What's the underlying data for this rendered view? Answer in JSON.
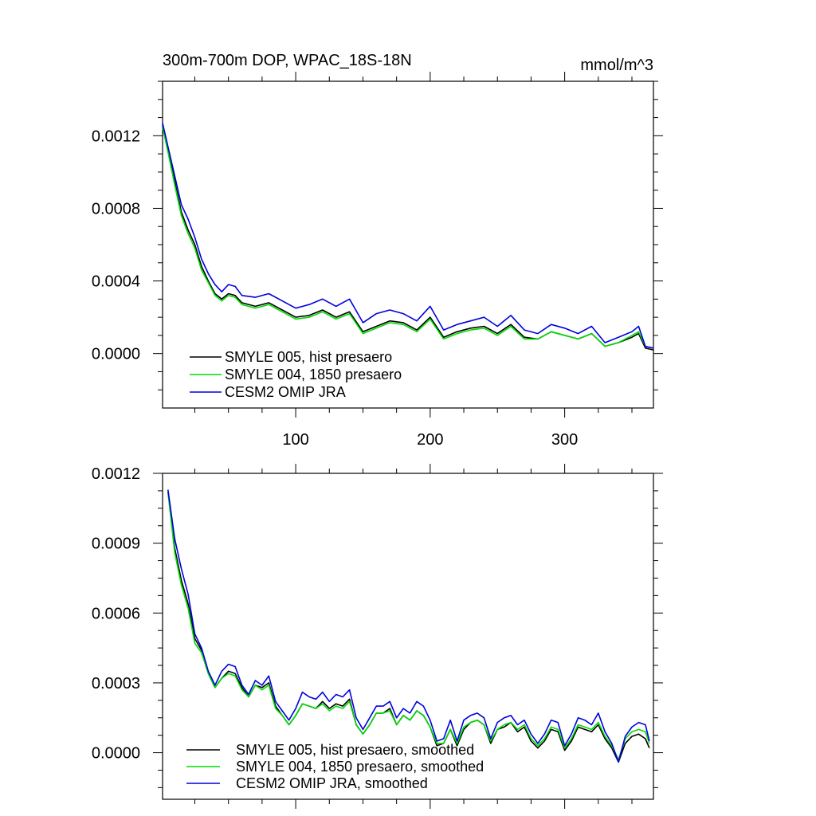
{
  "chart_data": [
    {
      "type": "line",
      "title": "300m-700m DOP, WPAC_18S-18N",
      "units": "mmol/m^3",
      "xlim": [
        1,
        366
      ],
      "ylim": [
        -0.0003,
        0.0015
      ],
      "y_ticks": [
        "0.0000",
        "0.0004",
        "0.0008",
        "0.0012"
      ],
      "y_tick_values": [
        0.0,
        0.0004,
        0.0008,
        0.0012
      ],
      "x_ticks": [
        "100",
        "200",
        "300"
      ],
      "x_tick_values": [
        100,
        200,
        300
      ],
      "legend_position": "bottom-left",
      "series": [
        {
          "name": "SMYLE 005, hist presaero",
          "color": "#000000",
          "x": [
            1,
            5,
            10,
            15,
            20,
            25,
            30,
            35,
            40,
            45,
            50,
            55,
            60,
            70,
            80,
            90,
            100,
            110,
            120,
            130,
            140,
            150,
            160,
            170,
            180,
            190,
            200,
            210,
            220,
            230,
            240,
            250,
            260,
            270,
            280,
            290,
            300,
            310,
            320,
            330,
            340,
            350,
            355,
            360,
            366
          ],
          "values": [
            0.00125,
            0.00112,
            0.00095,
            0.00078,
            0.00068,
            0.0006,
            0.00048,
            0.0004,
            0.00033,
            0.0003,
            0.00033,
            0.00032,
            0.00028,
            0.00026,
            0.00028,
            0.00024,
            0.0002,
            0.00021,
            0.00024,
            0.0002,
            0.00023,
            0.00012,
            0.00015,
            0.00018,
            0.00017,
            0.00013,
            0.0002,
            9e-05,
            0.00012,
            0.00014,
            0.00015,
            0.00011,
            0.00016,
            9e-05,
            8e-05,
            0.00012,
            0.0001,
            8e-05,
            0.00011,
            4e-05,
            6e-05,
            9e-05,
            0.00011,
            3e-05,
            2e-05
          ]
        },
        {
          "name": "SMYLE 004, 1850 presaero",
          "color": "#00dd00",
          "x": [
            1,
            5,
            10,
            15,
            20,
            25,
            30,
            35,
            40,
            45,
            50,
            55,
            60,
            70,
            80,
            90,
            100,
            110,
            120,
            130,
            140,
            150,
            160,
            170,
            180,
            190,
            200,
            210,
            220,
            230,
            240,
            250,
            260,
            270,
            280,
            290,
            300,
            310,
            320,
            330,
            340,
            350,
            355,
            360,
            366
          ],
          "values": [
            0.00125,
            0.00111,
            0.00093,
            0.00076,
            0.00066,
            0.00058,
            0.00046,
            0.00039,
            0.00032,
            0.00029,
            0.00032,
            0.00031,
            0.00027,
            0.00025,
            0.00027,
            0.00023,
            0.00019,
            0.0002,
            0.00023,
            0.00019,
            0.00022,
            0.00011,
            0.00014,
            0.00017,
            0.00016,
            0.00012,
            0.00019,
            8e-05,
            0.00011,
            0.00013,
            0.00014,
            0.0001,
            0.00015,
            8e-05,
            8e-05,
            0.00012,
            0.0001,
            8e-05,
            0.00011,
            4e-05,
            6e-05,
            0.0001,
            0.00012,
            4e-05,
            3e-05
          ]
        },
        {
          "name": "CESM2 OMIP JRA",
          "color": "#0000dd",
          "x": [
            1,
            5,
            10,
            15,
            20,
            25,
            30,
            35,
            40,
            45,
            50,
            55,
            60,
            70,
            80,
            90,
            100,
            110,
            120,
            130,
            140,
            150,
            160,
            170,
            180,
            190,
            200,
            210,
            220,
            230,
            240,
            250,
            260,
            270,
            280,
            290,
            300,
            310,
            320,
            330,
            340,
            350,
            355,
            360,
            366
          ],
          "values": [
            0.00127,
            0.00114,
            0.00098,
            0.00082,
            0.00074,
            0.00064,
            0.00052,
            0.00044,
            0.00038,
            0.00034,
            0.00038,
            0.00037,
            0.00032,
            0.00031,
            0.00033,
            0.00029,
            0.00025,
            0.00027,
            0.0003,
            0.00026,
            0.0003,
            0.00017,
            0.00022,
            0.00024,
            0.00022,
            0.00018,
            0.00026,
            0.00013,
            0.00016,
            0.00018,
            0.0002,
            0.00015,
            0.00021,
            0.00013,
            0.00011,
            0.00016,
            0.00014,
            0.00011,
            0.00015,
            6e-05,
            9e-05,
            0.00012,
            0.00015,
            4e-05,
            3e-05
          ]
        }
      ]
    },
    {
      "type": "line",
      "xlim": [
        1,
        366
      ],
      "ylim": [
        -0.0002,
        0.0012
      ],
      "y_ticks": [
        "0.0000",
        "0.0003",
        "0.0006",
        "0.0009",
        "0.0012"
      ],
      "y_tick_values": [
        0.0,
        0.0003,
        0.0006,
        0.0009,
        0.0012
      ],
      "x_tick_values": [
        100,
        200,
        300
      ],
      "legend_position": "bottom-left",
      "series": [
        {
          "name": "SMYLE 005, hist presaero, smoothed",
          "color": "#000000",
          "x": [
            5,
            10,
            15,
            20,
            25,
            30,
            35,
            40,
            45,
            50,
            55,
            60,
            65,
            70,
            75,
            80,
            85,
            90,
            95,
            100,
            105,
            110,
            115,
            120,
            125,
            130,
            135,
            140,
            145,
            150,
            155,
            160,
            165,
            170,
            175,
            180,
            185,
            190,
            195,
            200,
            205,
            210,
            215,
            220,
            225,
            230,
            235,
            240,
            245,
            250,
            255,
            260,
            265,
            270,
            275,
            280,
            285,
            290,
            295,
            300,
            305,
            310,
            315,
            320,
            325,
            330,
            335,
            340,
            345,
            350,
            355,
            360,
            363
          ],
          "values": [
            0.00112,
            0.00088,
            0.00074,
            0.00064,
            0.00049,
            0.00044,
            0.00034,
            0.00028,
            0.00032,
            0.00035,
            0.00034,
            0.00028,
            0.00024,
            0.00029,
            0.00028,
            0.0003,
            0.0002,
            0.00016,
            0.00012,
            0.00016,
            0.00021,
            0.0002,
            0.00019,
            0.00022,
            0.00019,
            0.00021,
            0.0002,
            0.00023,
            0.00012,
            8e-05,
            0.00012,
            0.00017,
            0.00017,
            0.00019,
            0.00012,
            0.00016,
            0.00014,
            0.00018,
            0.00016,
            0.00011,
            3e-05,
            4e-05,
            0.0001,
            3e-05,
            0.0001,
            0.00013,
            0.00014,
            0.00012,
            4e-05,
            0.0001,
            0.00011,
            0.00013,
            9e-05,
            0.00011,
            5e-05,
            2e-05,
            5e-05,
            0.0001,
            9e-05,
            1e-05,
            5e-05,
            0.00011,
            0.0001,
            9e-05,
            0.00012,
            6e-05,
            2e-05,
            -4e-05,
            4e-05,
            7e-05,
            8e-05,
            6e-05,
            2e-05
          ]
        },
        {
          "name": "SMYLE 004, 1850 presaero, smoothed",
          "color": "#00dd00",
          "x": [
            5,
            10,
            15,
            20,
            25,
            30,
            35,
            40,
            45,
            50,
            55,
            60,
            65,
            70,
            75,
            80,
            85,
            90,
            95,
            100,
            105,
            110,
            115,
            120,
            125,
            130,
            135,
            140,
            145,
            150,
            155,
            160,
            165,
            170,
            175,
            180,
            185,
            190,
            195,
            200,
            205,
            210,
            215,
            220,
            225,
            230,
            235,
            240,
            245,
            250,
            255,
            260,
            265,
            270,
            275,
            280,
            285,
            290,
            295,
            300,
            305,
            310,
            315,
            320,
            325,
            330,
            335,
            340,
            345,
            350,
            355,
            360,
            363
          ],
          "values": [
            0.00112,
            0.00086,
            0.00072,
            0.00062,
            0.00047,
            0.00043,
            0.00034,
            0.00028,
            0.00032,
            0.00034,
            0.00033,
            0.00027,
            0.00024,
            0.00029,
            0.00027,
            0.00029,
            0.00019,
            0.00016,
            0.00012,
            0.00016,
            0.00021,
            0.0002,
            0.00019,
            0.00021,
            0.00018,
            0.0002,
            0.00019,
            0.00022,
            0.00012,
            8e-05,
            0.00012,
            0.00017,
            0.00017,
            0.00018,
            0.00012,
            0.00016,
            0.00014,
            0.00018,
            0.00016,
            0.00011,
            4e-05,
            4e-05,
            0.0001,
            4e-05,
            0.00011,
            0.00013,
            0.00014,
            0.00012,
            5e-05,
            0.0001,
            0.00012,
            0.00013,
            0.0001,
            0.00012,
            6e-05,
            3e-05,
            6e-05,
            0.00011,
            0.0001,
            2e-05,
            6e-05,
            0.00012,
            0.00011,
            0.0001,
            0.00013,
            7e-05,
            3e-05,
            -3e-05,
            6e-05,
            9e-05,
            0.0001,
            9e-05,
            4e-05
          ]
        },
        {
          "name": "CESM2 OMIP JRA, smoothed",
          "color": "#0000dd",
          "x": [
            5,
            10,
            15,
            20,
            25,
            30,
            35,
            40,
            45,
            50,
            55,
            60,
            65,
            70,
            75,
            80,
            85,
            90,
            95,
            100,
            105,
            110,
            115,
            120,
            125,
            130,
            135,
            140,
            145,
            150,
            155,
            160,
            165,
            170,
            175,
            180,
            185,
            190,
            195,
            200,
            205,
            210,
            215,
            220,
            225,
            230,
            235,
            240,
            245,
            250,
            255,
            260,
            265,
            270,
            275,
            280,
            285,
            290,
            295,
            300,
            305,
            310,
            315,
            320,
            325,
            330,
            335,
            340,
            345,
            350,
            355,
            360,
            363
          ],
          "values": [
            0.00113,
            0.00092,
            0.00079,
            0.00068,
            0.00051,
            0.00045,
            0.00035,
            0.00029,
            0.00035,
            0.00038,
            0.00037,
            0.00029,
            0.00025,
            0.00031,
            0.00029,
            0.00033,
            0.00022,
            0.00018,
            0.00014,
            0.00019,
            0.00026,
            0.00024,
            0.00023,
            0.00026,
            0.00022,
            0.00025,
            0.00024,
            0.00027,
            0.00015,
            0.0001,
            0.00015,
            0.0002,
            0.0002,
            0.00022,
            0.00015,
            0.00019,
            0.00017,
            0.00022,
            0.0002,
            0.00014,
            5e-05,
            6e-05,
            0.00014,
            5e-05,
            0.00014,
            0.00016,
            0.00017,
            0.00015,
            6e-05,
            0.00013,
            0.00015,
            0.00016,
            0.00012,
            0.00014,
            8e-05,
            4e-05,
            8e-05,
            0.00014,
            0.00013,
            3e-05,
            8e-05,
            0.00015,
            0.00014,
            0.00012,
            0.00017,
            9e-05,
            4e-05,
            -4e-05,
            7e-05,
            0.00011,
            0.00013,
            0.00012,
            5e-05
          ]
        }
      ]
    }
  ]
}
